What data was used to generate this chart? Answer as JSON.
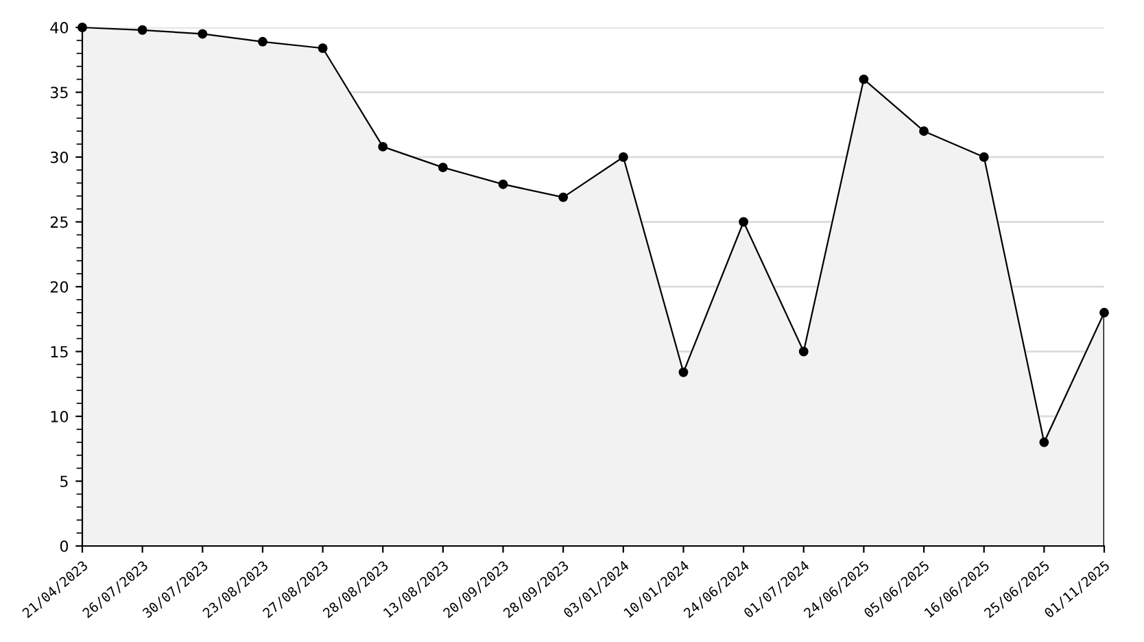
{
  "chart_data": {
    "type": "area",
    "categories": [
      "21/04/2023",
      "26/07/2023",
      "30/07/2023",
      "23/08/2023",
      "27/08/2023",
      "28/08/2023",
      "13/08/2023",
      "20/09/2023",
      "28/09/2023",
      "03/01/2024",
      "10/01/2024",
      "24/06/2024",
      "01/07/2024",
      "24/06/2025",
      "05/06/2025",
      "16/06/2025",
      "25/06/2025",
      "01/11/2025"
    ],
    "series": [
      {
        "color": "#000000",
        "values": [
          40,
          39.8,
          39.5,
          38.9,
          38.4,
          30.8,
          29.2,
          27.9,
          26.9,
          30,
          13.4,
          25,
          15,
          36,
          32,
          30,
          8,
          18
        ]
      }
    ],
    "ylim": [
      0,
      40
    ],
    "yticks": [
      0,
      5,
      10,
      15,
      20,
      25,
      30,
      35,
      40
    ],
    "grid": "y",
    "marker": "circle",
    "line_style": "solid",
    "legend": false
  }
}
